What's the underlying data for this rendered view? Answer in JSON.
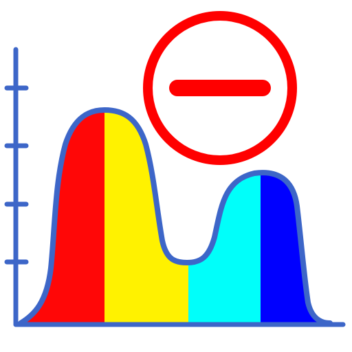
{
  "icon": {
    "name": "remove-distribution-chart-icon",
    "glyph": "minus-circle-icon"
  },
  "colors": {
    "axis": "#3d66c8",
    "outline": "#3d66c8",
    "band_red": "#ff0707",
    "band_yellow": "#fff200",
    "band_cyan": "#00fffa",
    "band_blue": "#0000ff",
    "badge_red": "#ff0000",
    "background": "#ffffff"
  }
}
